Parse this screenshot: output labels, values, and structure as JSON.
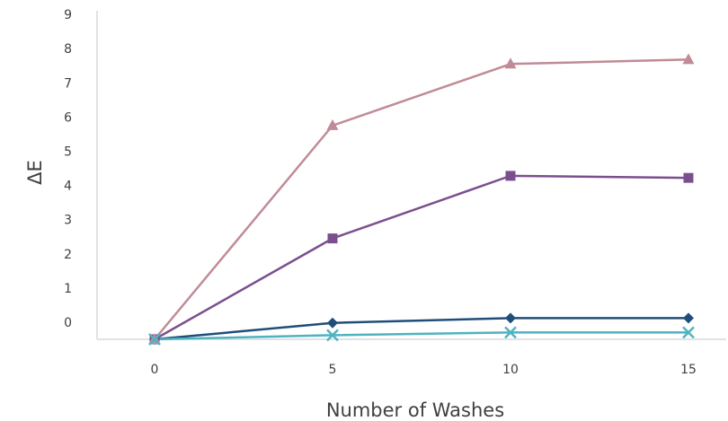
{
  "chart_data": {
    "type": "line",
    "title": "",
    "xlabel": "Number of Washes",
    "ylabel": "ΔE",
    "x": [
      0,
      5,
      10,
      15
    ],
    "x_tick_labels": [
      "0",
      "5",
      "10",
      "15"
    ],
    "y_tick_labels": [
      "0",
      "1",
      "2",
      "3",
      "4",
      "5",
      "6",
      "7",
      "8",
      "9"
    ],
    "ylim": [
      0,
      9.5
    ],
    "grid": false,
    "legend": "none",
    "series": [
      {
        "values": [
          0,
          0.48,
          0.62,
          0.62
        ],
        "color": "#1f4e79",
        "marker": "diamond"
      },
      {
        "values": [
          0,
          2.95,
          4.78,
          4.72
        ],
        "color": "#7b4f8e",
        "marker": "square"
      },
      {
        "values": [
          0,
          6.25,
          8.05,
          8.18
        ],
        "color": "#c08b96",
        "marker": "triangle"
      },
      {
        "values": [
          0,
          0.12,
          0.2,
          0.2
        ],
        "color": "#4fb3bf",
        "marker": "x"
      }
    ]
  }
}
